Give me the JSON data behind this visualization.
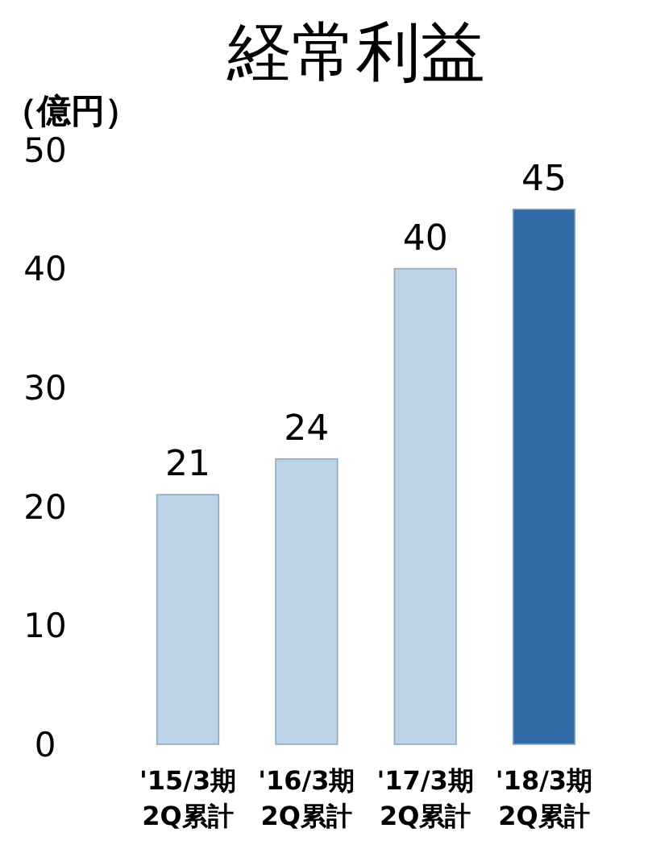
{
  "chart_data": {
    "type": "bar",
    "title": "経常利益",
    "ylabel": "（億円）",
    "categories": [
      "'15/3期 2Q累計",
      "'16/3期 2Q累計",
      "'17/3期 2Q累計",
      "'18/3期 2Q累計"
    ],
    "values": [
      21,
      24,
      40,
      45
    ],
    "colors": [
      "#bcd3e8",
      "#bcd3e8",
      "#bcd3e8",
      "#2f6aa6"
    ],
    "ylim": [
      0,
      50
    ],
    "yticks": [
      0,
      10,
      20,
      30,
      40,
      50
    ],
    "grid": false,
    "data_labels": true
  }
}
